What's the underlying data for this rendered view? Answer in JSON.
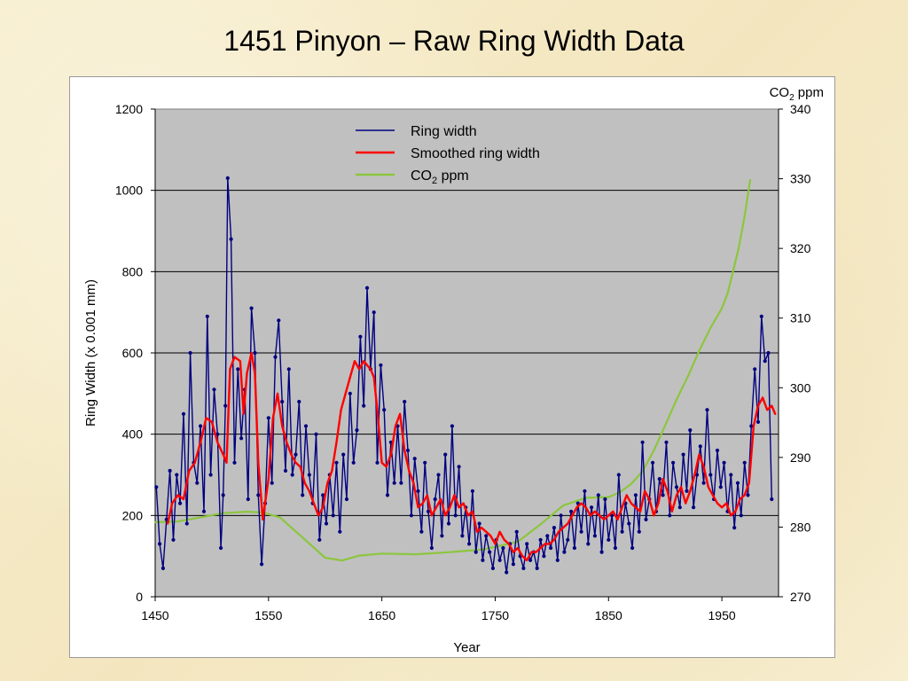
{
  "slide": {
    "title": "1451 Pinyon – Raw Ring Width Data"
  },
  "colors": {
    "plot_bg": "#c0c0c0",
    "grid": "#000000",
    "ring_width": "#000080",
    "smoothed": "#ff0000",
    "co2": "#8cc63e"
  },
  "chart_data": {
    "type": "line",
    "title": "",
    "xlabel": "Year",
    "ylabel": "Ring Width (x 0.001 mm)",
    "y2label_main": "CO",
    "y2label_sub": "2",
    "y2label_rest": " ppm",
    "xlim": [
      1450,
      2000
    ],
    "ylim": [
      0,
      1200
    ],
    "y2lim": [
      270,
      340
    ],
    "x_ticks": [
      1450,
      1550,
      1650,
      1750,
      1850,
      1950
    ],
    "y_ticks": [
      0,
      200,
      400,
      600,
      800,
      1000,
      1200
    ],
    "y2_ticks": [
      270,
      280,
      290,
      300,
      310,
      320,
      330,
      340
    ],
    "grid": true,
    "legend_position": "top-center",
    "series": [
      {
        "key": "ring",
        "name": "Ring width",
        "legend_main": "Ring width",
        "axis": "left",
        "x": [
          1451,
          1454,
          1457,
          1460,
          1463,
          1466,
          1469,
          1472,
          1475,
          1478,
          1481,
          1484,
          1487,
          1490,
          1493,
          1496,
          1499,
          1502,
          1505,
          1508,
          1510,
          1512,
          1514,
          1517,
          1520,
          1523,
          1526,
          1529,
          1532,
          1535,
          1538,
          1541,
          1544,
          1547,
          1550,
          1553,
          1556,
          1559,
          1562,
          1565,
          1568,
          1571,
          1574,
          1577,
          1580,
          1583,
          1586,
          1589,
          1592,
          1595,
          1598,
          1601,
          1604,
          1607,
          1610,
          1613,
          1616,
          1619,
          1622,
          1625,
          1628,
          1631,
          1634,
          1637,
          1640,
          1643,
          1646,
          1649,
          1652,
          1655,
          1658,
          1661,
          1664,
          1667,
          1670,
          1673,
          1676,
          1679,
          1682,
          1685,
          1688,
          1691,
          1694,
          1697,
          1700,
          1703,
          1706,
          1709,
          1712,
          1715,
          1718,
          1721,
          1724,
          1727,
          1730,
          1733,
          1736,
          1739,
          1742,
          1745,
          1748,
          1751,
          1754,
          1757,
          1760,
          1763,
          1766,
          1769,
          1772,
          1775,
          1778,
          1781,
          1784,
          1787,
          1790,
          1793,
          1796,
          1799,
          1802,
          1805,
          1808,
          1811,
          1814,
          1817,
          1820,
          1823,
          1826,
          1829,
          1832,
          1835,
          1838,
          1841,
          1844,
          1847,
          1850,
          1853,
          1856,
          1859,
          1862,
          1865,
          1868,
          1871,
          1874,
          1877,
          1880,
          1883,
          1886,
          1889,
          1892,
          1895,
          1898,
          1901,
          1904,
          1907,
          1910,
          1913,
          1916,
          1919,
          1922,
          1925,
          1928,
          1931,
          1934,
          1937,
          1940,
          1943,
          1946,
          1949,
          1952,
          1955,
          1958,
          1961,
          1964,
          1967,
          1970,
          1973,
          1976,
          1979,
          1982,
          1985,
          1988,
          1991,
          1994
        ],
        "values": [
          270,
          130,
          70,
          190,
          310,
          140,
          300,
          230,
          450,
          180,
          600,
          330,
          280,
          420,
          210,
          690,
          300,
          510,
          400,
          120,
          250,
          470,
          1030,
          880,
          330,
          560,
          390,
          510,
          240,
          710,
          600,
          250,
          80,
          230,
          440,
          280,
          590,
          680,
          480,
          310,
          560,
          300,
          350,
          480,
          250,
          420,
          300,
          230,
          400,
          140,
          250,
          180,
          300,
          200,
          330,
          160,
          350,
          240,
          500,
          330,
          410,
          640,
          470,
          760,
          560,
          700,
          330,
          570,
          460,
          250,
          380,
          280,
          420,
          280,
          480,
          360,
          200,
          340,
          260,
          160,
          330,
          210,
          120,
          240,
          300,
          150,
          350,
          180,
          420,
          200,
          320,
          150,
          220,
          130,
          260,
          110,
          180,
          90,
          150,
          110,
          70,
          140,
          90,
          120,
          60,
          130,
          80,
          160,
          100,
          70,
          130,
          90,
          110,
          70,
          140,
          100,
          150,
          120,
          170,
          90,
          200,
          110,
          140,
          210,
          120,
          230,
          160,
          260,
          130,
          220,
          150,
          250,
          110,
          240,
          140,
          200,
          120,
          300,
          160,
          230,
          180,
          120,
          250,
          160,
          380,
          190,
          240,
          330,
          210,
          290,
          250,
          380,
          200,
          330,
          270,
          220,
          350,
          260,
          410,
          220,
          300,
          370,
          280,
          460,
          300,
          240,
          360,
          270,
          330,
          210,
          300,
          170,
          280,
          200,
          330,
          250,
          420,
          560,
          430,
          690,
          580,
          600,
          240
        ]
      },
      {
        "key": "smooth",
        "name": "Smoothed ring width",
        "legend_main": "Smoothed ring width",
        "axis": "left",
        "x": [
          1461,
          1465,
          1470,
          1475,
          1480,
          1485,
          1490,
          1495,
          1500,
          1505,
          1510,
          1513,
          1516,
          1520,
          1525,
          1528,
          1531,
          1535,
          1538,
          1541,
          1545,
          1550,
          1554,
          1558,
          1562,
          1566,
          1570,
          1574,
          1578,
          1582,
          1586,
          1590,
          1594,
          1598,
          1602,
          1606,
          1610,
          1614,
          1618,
          1622,
          1626,
          1630,
          1634,
          1637,
          1640,
          1643,
          1646,
          1650,
          1654,
          1658,
          1662,
          1666,
          1670,
          1674,
          1678,
          1682,
          1686,
          1690,
          1694,
          1698,
          1702,
          1706,
          1710,
          1714,
          1718,
          1722,
          1726,
          1730,
          1734,
          1738,
          1742,
          1746,
          1750,
          1754,
          1758,
          1762,
          1766,
          1770,
          1774,
          1778,
          1782,
          1786,
          1790,
          1794,
          1798,
          1802,
          1806,
          1810,
          1814,
          1818,
          1822,
          1826,
          1830,
          1834,
          1838,
          1842,
          1846,
          1850,
          1854,
          1858,
          1862,
          1866,
          1870,
          1874,
          1878,
          1882,
          1886,
          1890,
          1894,
          1898,
          1902,
          1906,
          1910,
          1914,
          1918,
          1922,
          1926,
          1930,
          1934,
          1938,
          1942,
          1946,
          1950,
          1954,
          1958,
          1962,
          1966,
          1970,
          1974,
          1978,
          1982,
          1986,
          1990,
          1994,
          1997
        ],
        "values": [
          180,
          230,
          250,
          240,
          310,
          330,
          380,
          440,
          430,
          380,
          350,
          330,
          560,
          590,
          580,
          450,
          550,
          600,
          550,
          330,
          190,
          290,
          440,
          500,
          420,
          380,
          350,
          330,
          320,
          280,
          260,
          230,
          200,
          220,
          280,
          310,
          380,
          460,
          500,
          540,
          580,
          560,
          580,
          570,
          560,
          540,
          460,
          330,
          320,
          350,
          420,
          450,
          360,
          310,
          280,
          220,
          230,
          250,
          200,
          220,
          240,
          200,
          220,
          250,
          220,
          230,
          200,
          210,
          160,
          170,
          160,
          150,
          130,
          160,
          140,
          130,
          110,
          120,
          100,
          90,
          110,
          110,
          120,
          130,
          130,
          140,
          160,
          170,
          180,
          200,
          220,
          230,
          220,
          200,
          210,
          200,
          190,
          200,
          210,
          190,
          220,
          250,
          230,
          220,
          210,
          260,
          240,
          200,
          230,
          290,
          260,
          210,
          250,
          270,
          230,
          260,
          300,
          350,
          320,
          270,
          250,
          230,
          220,
          230,
          200,
          210,
          240,
          250,
          280,
          420,
          470,
          490,
          460,
          470,
          450
        ]
      },
      {
        "key": "co2",
        "name": "CO2 ppm",
        "legend_main": "CO",
        "legend_sub": "2",
        "legend_rest": " ppm",
        "axis": "right",
        "x": [
          1450,
          1470,
          1490,
          1510,
          1530,
          1545,
          1560,
          1580,
          1600,
          1615,
          1630,
          1650,
          1680,
          1710,
          1740,
          1770,
          1790,
          1810,
          1830,
          1850,
          1860,
          1870,
          1880,
          1890,
          1900,
          1910,
          1920,
          1930,
          1940,
          1950,
          1955,
          1960,
          1965,
          1970,
          1975
        ],
        "values": [
          280.7,
          280.8,
          281.4,
          282.0,
          282.2,
          282.1,
          281.4,
          278.5,
          275.6,
          275.2,
          275.9,
          276.2,
          276.1,
          276.4,
          276.8,
          277.9,
          280.4,
          283.1,
          284.2,
          284.3,
          285.0,
          286.2,
          288.0,
          291.0,
          294.6,
          298.3,
          301.6,
          305.3,
          308.6,
          311.4,
          313.5,
          316.8,
          320.2,
          324.6,
          329.8
        ]
      }
    ]
  }
}
